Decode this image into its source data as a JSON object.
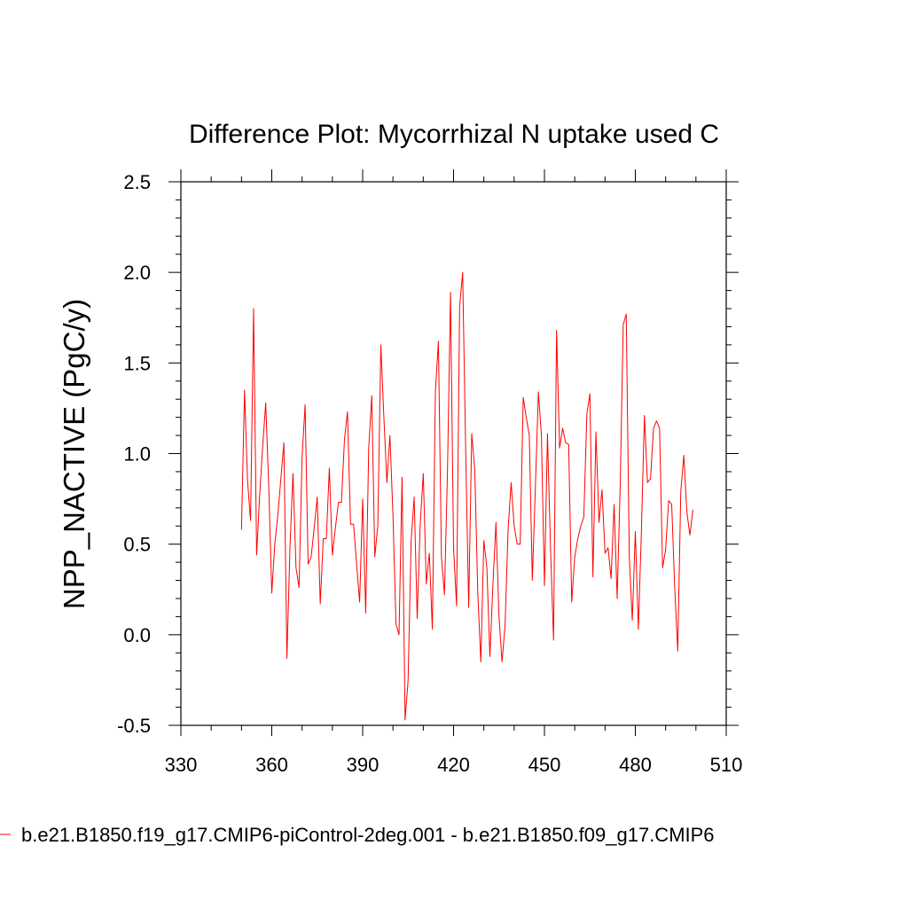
{
  "chart_data": {
    "type": "line",
    "title": "Difference Plot: Mycorrhizal N uptake used C",
    "xlabel": "",
    "ylabel": "NPP_NACTIVE  (PgC/y)",
    "xlim": [
      330,
      510
    ],
    "ylim": [
      -0.5,
      2.5
    ],
    "xticks": [
      330,
      360,
      390,
      420,
      450,
      480,
      510
    ],
    "xtick_labels": [
      "330",
      "360",
      "390",
      "420",
      "450",
      "480",
      "510"
    ],
    "yticks": [
      -0.5,
      0.0,
      0.5,
      1.0,
      1.5,
      2.0,
      2.5
    ],
    "ytick_labels": [
      "-0.5",
      "0.0",
      "0.5",
      "1.0",
      "1.5",
      "2.0",
      "2.5"
    ],
    "grid": false,
    "legend_position": "bottom",
    "series": [
      {
        "name": "b.e21.B1850.f19_g17.CMIP6-piControl-2deg.001 - b.e21.B1850.f09_g17.CMIP6",
        "color": "#ff0000",
        "x": [
          350,
          351,
          352,
          353,
          354,
          355,
          356,
          357,
          358,
          359,
          360,
          361,
          362,
          363,
          364,
          365,
          366,
          367,
          368,
          369,
          370,
          371,
          372,
          373,
          374,
          375,
          376,
          377,
          378,
          379,
          380,
          381,
          382,
          383,
          384,
          385,
          386,
          387,
          388,
          389,
          390,
          391,
          392,
          393,
          394,
          395,
          396,
          397,
          398,
          399,
          400,
          401,
          402,
          403,
          404,
          405,
          406,
          407,
          408,
          409,
          410,
          411,
          412,
          413,
          414,
          415,
          416,
          417,
          418,
          419,
          420,
          421,
          422,
          423,
          424,
          425,
          426,
          427,
          428,
          429,
          430,
          431,
          432,
          433,
          434,
          435,
          436,
          437,
          438,
          439,
          440,
          441,
          442,
          443,
          444,
          445,
          446,
          447,
          448,
          449,
          450,
          451,
          452,
          453,
          454,
          455,
          456,
          457,
          458,
          459,
          460,
          461,
          462,
          463,
          464,
          465,
          466,
          467,
          468,
          469,
          470,
          471,
          472,
          473,
          474,
          475,
          476,
          477,
          478,
          479,
          480,
          481,
          482,
          483,
          484,
          485,
          486,
          487,
          488,
          489,
          490,
          491,
          492,
          493,
          494,
          495,
          496,
          497,
          498,
          499
        ],
        "values": [
          0.58,
          1.35,
          0.85,
          0.63,
          1.8,
          0.44,
          0.77,
          1.04,
          1.28,
          0.82,
          0.23,
          0.5,
          0.66,
          0.86,
          1.06,
          -0.13,
          0.48,
          0.89,
          0.37,
          0.26,
          0.98,
          1.27,
          0.39,
          0.43,
          0.59,
          0.76,
          0.17,
          0.53,
          0.53,
          0.92,
          0.44,
          0.59,
          0.73,
          0.73,
          1.08,
          1.23,
          0.61,
          0.61,
          0.39,
          0.18,
          0.75,
          0.12,
          1.03,
          1.32,
          0.43,
          0.6,
          1.6,
          1.2,
          0.84,
          1.1,
          0.66,
          0.06,
          0.0,
          0.87,
          -0.47,
          -0.25,
          0.52,
          0.76,
          0.09,
          0.61,
          0.89,
          0.28,
          0.45,
          0.03,
          1.34,
          1.62,
          0.43,
          0.22,
          0.91,
          1.89,
          0.48,
          0.16,
          1.81,
          2.0,
          1.02,
          0.15,
          1.11,
          0.91,
          0.23,
          -0.15,
          0.52,
          0.37,
          -0.12,
          0.28,
          0.62,
          0.1,
          -0.15,
          0.05,
          0.58,
          0.84,
          0.6,
          0.5,
          0.5,
          1.31,
          1.2,
          1.1,
          0.3,
          0.81,
          1.34,
          1.1,
          0.27,
          1.11,
          0.48,
          -0.03,
          1.68,
          1.03,
          1.14,
          1.06,
          1.05,
          0.18,
          0.43,
          0.53,
          0.6,
          0.65,
          1.22,
          1.33,
          0.32,
          1.12,
          0.62,
          0.8,
          0.45,
          0.48,
          0.31,
          0.72,
          0.2,
          0.82,
          1.71,
          1.77,
          0.43,
          0.08,
          0.57,
          0.03,
          0.57,
          1.21,
          0.84,
          0.86,
          1.14,
          1.18,
          1.14,
          0.37,
          0.47,
          0.74,
          0.72,
          0.26,
          -0.09,
          0.79,
          0.99,
          0.68,
          0.55,
          0.69
        ]
      }
    ]
  }
}
